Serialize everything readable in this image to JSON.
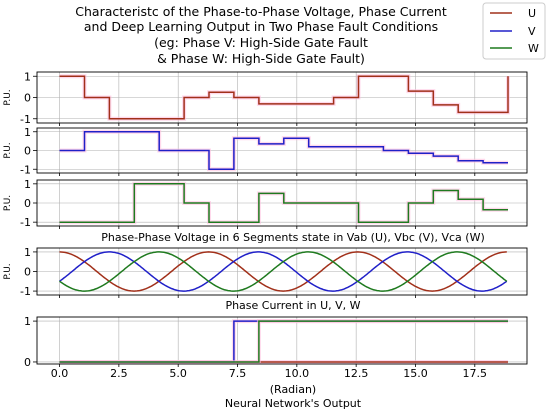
{
  "figure": {
    "title_lines": [
      "Characteristc of the Phase-to-Phase Voltage, Phase Current",
      "and Deep Learning Output in Two Phase Fault Conditions",
      "(eg: Phase V: High-Side Gate Fault",
      "& Phase W: High-Side Gate Fault)"
    ],
    "legend": [
      {
        "label": "U",
        "color": "#a1301a"
      },
      {
        "label": "V",
        "color": "#2020c8"
      },
      {
        "label": "W",
        "color": "#1f7a1f"
      }
    ],
    "xlabel_lines": [
      "(Radian)",
      "Neural Network's Output"
    ]
  },
  "colors": {
    "U": "#a1301a",
    "V": "#2020c8",
    "W": "#1f7a1f",
    "pink_fill": "#ffc0e0",
    "grid": "#b0b0b0"
  },
  "chart_data": [
    {
      "type": "line",
      "ylabel": "P.U.",
      "ylim": [
        -1.2,
        1.2
      ],
      "yticks": [
        -1,
        0,
        1
      ],
      "series": [
        {
          "name": "U",
          "step": true,
          "x": [
            0,
            1.05,
            2.1,
            4.2,
            5.25,
            6.3,
            7.35,
            8.4,
            10.5,
            11.55,
            12.6,
            13.65,
            14.7,
            15.75,
            16.8,
            18.9
          ],
          "y": [
            1,
            0,
            -1,
            -1,
            0,
            0.25,
            0,
            -0.3,
            -0.3,
            0,
            1,
            1,
            0.3,
            -0.35,
            -0.7,
            1
          ]
        }
      ]
    },
    {
      "type": "line",
      "ylabel": "P.U.",
      "ylim": [
        -1.2,
        1.2
      ],
      "yticks": [
        -1,
        0,
        1
      ],
      "series": [
        {
          "name": "V",
          "step": true,
          "x": [
            0,
            1.05,
            3.15,
            4.2,
            6.3,
            7.35,
            8.4,
            9.45,
            10.5,
            13.65,
            14.7,
            15.75,
            16.8,
            17.85,
            18.9
          ],
          "y": [
            0,
            1,
            1,
            0,
            -1,
            0.65,
            0.35,
            0.65,
            0.2,
            0,
            -0.15,
            -0.3,
            -0.55,
            -0.65,
            -0.65
          ]
        }
      ]
    },
    {
      "type": "line",
      "ylabel": "P.U.",
      "ylim": [
        -1.2,
        1.2
      ],
      "yticks": [
        -1,
        0,
        1
      ],
      "series": [
        {
          "name": "W",
          "step": true,
          "x": [
            0,
            2.1,
            3.15,
            5.25,
            6.3,
            8.4,
            9.45,
            12.6,
            14.7,
            15.75,
            16.8,
            17.85,
            18.9
          ],
          "y": [
            -1,
            -1,
            1,
            0,
            -1,
            0.5,
            0,
            -1,
            0,
            0.65,
            0.2,
            -0.35,
            -0.35
          ]
        }
      ]
    },
    {
      "type": "line",
      "title": "Phase-Phase Voltage in 6 Segments state in Vab (U), Vbc (V), Vca (W)",
      "ylabel": "P.U.",
      "ylim": [
        -1.2,
        1.2
      ],
      "yticks": [
        -1,
        0,
        1
      ],
      "x_range": [
        0,
        18.85
      ],
      "series": [
        {
          "name": "U",
          "function": "cos(x)",
          "note_peaks": [
            0,
            6.28,
            12.57,
            18.85
          ]
        },
        {
          "name": "V",
          "function": "cos(x - 2.094)",
          "note_peaks": [
            2.09,
            8.38,
            14.66
          ]
        },
        {
          "name": "W",
          "function": "cos(x + 2.094)",
          "note_peaks": [
            4.19,
            10.47,
            16.76
          ]
        }
      ]
    },
    {
      "type": "line",
      "title": "Phase Current in U, V, W",
      "ylim": [
        -0.05,
        1.1
      ],
      "yticks": [
        0,
        1
      ],
      "series": [
        {
          "name": "U",
          "step": true,
          "x": [
            0,
            18.9
          ],
          "y": [
            0,
            0
          ]
        },
        {
          "name": "V",
          "step": true,
          "x": [
            0,
            7.35,
            18.9
          ],
          "y": [
            0,
            1,
            1
          ]
        },
        {
          "name": "W",
          "step": true,
          "x": [
            0,
            8.4,
            18.9
          ],
          "y": [
            0,
            1,
            1
          ]
        }
      ]
    }
  ],
  "x_axis": {
    "xlim": [
      -0.95,
      19.7
    ],
    "ticks": [
      0,
      2.5,
      5,
      7.5,
      10,
      12.5,
      15,
      17.5
    ],
    "tick_labels": [
      "0.0",
      "2.5",
      "5.0",
      "7.5",
      "10.0",
      "12.5",
      "15.0",
      "17.5"
    ]
  }
}
